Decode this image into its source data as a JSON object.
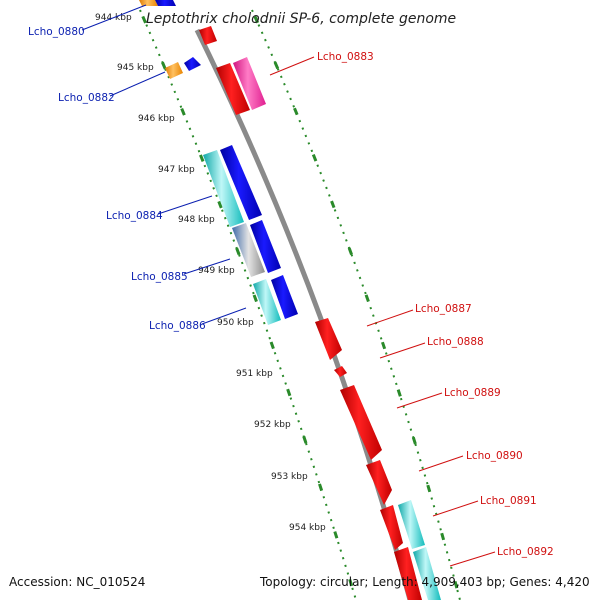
{
  "title": "Leptothrix cholodnii SP-6, complete genome",
  "footer": {
    "accession": "Accession: NC_010524",
    "topology": "Topology: circular; Length: 4,909,403 bp; Genes: 4,420"
  },
  "ticks": [
    "944 kbp",
    "945 kbp",
    "946 kbp",
    "947 kbp",
    "948 kbp",
    "949 kbp",
    "950 kbp",
    "951 kbp",
    "952 kbp",
    "953 kbp",
    "954 kbp"
  ],
  "labels_left": [
    "Lcho_0880",
    "Lcho_0882",
    "Lcho_0884",
    "Lcho_0885",
    "Lcho_0886"
  ],
  "labels_right": [
    "Lcho_0883",
    "Lcho_0887",
    "Lcho_0888",
    "Lcho_0889",
    "Lcho_0890",
    "Lcho_0891",
    "Lcho_0892"
  ],
  "colors": {
    "forward_label": "#0a1fb0",
    "reverse_label": "#d01010",
    "backbone": "#8a8a8a",
    "tick_marks": "#2a8a2a",
    "red": "#ee0000",
    "blue": "#0000ee",
    "cyan": "#19d3d3",
    "magenta": "#ff2ea6",
    "orange": "#ff9a10",
    "steel": "#6f8fc0"
  }
}
